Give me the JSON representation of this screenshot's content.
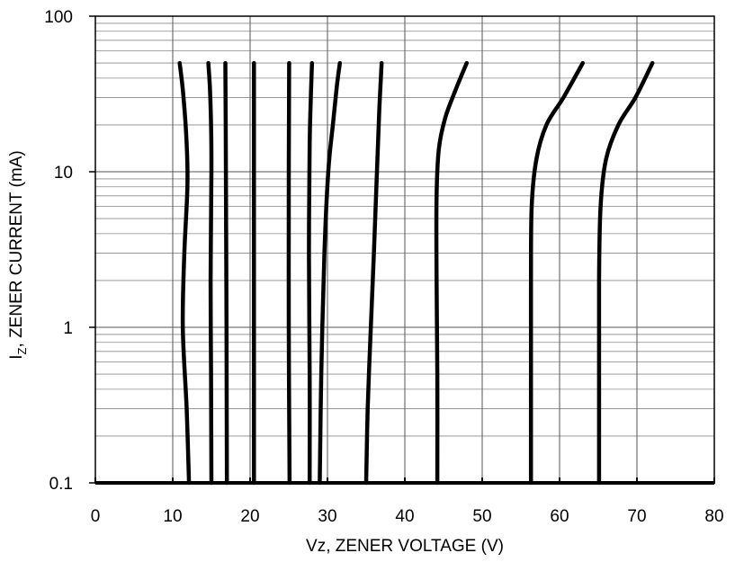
{
  "chart_data": {
    "type": "line",
    "title": "",
    "xlabel": "Vz, ZENER VOLTAGE (V)",
    "ylabel": "IZ, ZENER CURRENT (mA)",
    "ylabel_main": "I",
    "ylabel_sub": "Z",
    "ylabel_rest": ", ZENER CURRENT (mA)",
    "x_scale": "linear",
    "y_scale": "log",
    "xlim": [
      0,
      80
    ],
    "ylim": [
      0.1,
      100
    ],
    "grid": true,
    "legend": "none",
    "x_ticks": [
      {
        "value": 0,
        "label": "0"
      },
      {
        "value": 10,
        "label": "10"
      },
      {
        "value": 20,
        "label": "20"
      },
      {
        "value": 30,
        "label": "30"
      },
      {
        "value": 40,
        "label": "40"
      },
      {
        "value": 50,
        "label": "50"
      },
      {
        "value": 60,
        "label": "60"
      },
      {
        "value": 70,
        "label": "70"
      },
      {
        "value": 80,
        "label": "80"
      }
    ],
    "y_ticks": [
      {
        "value": 0.1,
        "label": "0.1"
      },
      {
        "value": 1,
        "label": "1"
      },
      {
        "value": 10,
        "label": "10"
      },
      {
        "value": 100,
        "label": "100"
      }
    ],
    "series": [
      {
        "points": [
          [
            12.1,
            0.1
          ],
          [
            11.8,
            0.3
          ],
          [
            11.3,
            1
          ],
          [
            11.5,
            3
          ],
          [
            11.9,
            8
          ],
          [
            11.8,
            15
          ],
          [
            11.4,
            30
          ],
          [
            10.9,
            50
          ]
        ]
      },
      {
        "points": [
          [
            15.0,
            0.1
          ],
          [
            14.95,
            0.5
          ],
          [
            14.9,
            2
          ],
          [
            15.0,
            10
          ],
          [
            14.95,
            20
          ],
          [
            14.8,
            35
          ],
          [
            14.6,
            50
          ]
        ]
      },
      {
        "points": [
          [
            17.0,
            0.1
          ],
          [
            16.95,
            1
          ],
          [
            16.9,
            5
          ],
          [
            16.85,
            20
          ],
          [
            16.8,
            50
          ]
        ]
      },
      {
        "points": [
          [
            20.5,
            0.1
          ],
          [
            20.5,
            1
          ],
          [
            20.5,
            10
          ],
          [
            20.5,
            50
          ]
        ]
      },
      {
        "points": [
          [
            25.1,
            0.1
          ],
          [
            25.0,
            1
          ],
          [
            25.0,
            10
          ],
          [
            25.05,
            50
          ]
        ]
      },
      {
        "points": [
          [
            27.7,
            0.1
          ],
          [
            27.7,
            0.5
          ],
          [
            27.6,
            3
          ],
          [
            27.7,
            15
          ],
          [
            27.85,
            30
          ],
          [
            28.0,
            50
          ]
        ]
      },
      {
        "points": [
          [
            29.0,
            0.1
          ],
          [
            29.2,
            0.5
          ],
          [
            29.6,
            3
          ],
          [
            30.1,
            10
          ],
          [
            30.7,
            20
          ],
          [
            31.2,
            35
          ],
          [
            31.6,
            50
          ]
        ]
      },
      {
        "points": [
          [
            35.0,
            0.1
          ],
          [
            35.2,
            0.3
          ],
          [
            35.6,
            1
          ],
          [
            36.0,
            3
          ],
          [
            36.4,
            10
          ],
          [
            36.7,
            25
          ],
          [
            37.0,
            50
          ]
        ]
      },
      {
        "points": [
          [
            44.2,
            0.1
          ],
          [
            44.2,
            0.5
          ],
          [
            44.1,
            2
          ],
          [
            44.1,
            7
          ],
          [
            44.4,
            14
          ],
          [
            45.2,
            22
          ],
          [
            46.5,
            33
          ],
          [
            48.0,
            50
          ]
        ]
      },
      {
        "points": [
          [
            56.3,
            0.1
          ],
          [
            56.3,
            0.5
          ],
          [
            56.3,
            2
          ],
          [
            56.4,
            6
          ],
          [
            57.0,
            12
          ],
          [
            58.3,
            20
          ],
          [
            60.5,
            30
          ],
          [
            63.0,
            50
          ]
        ]
      },
      {
        "points": [
          [
            65.1,
            0.1
          ],
          [
            65.1,
            0.5
          ],
          [
            65.1,
            2
          ],
          [
            65.3,
            6
          ],
          [
            66.0,
            12
          ],
          [
            67.6,
            20
          ],
          [
            69.8,
            30
          ],
          [
            72.0,
            50
          ]
        ]
      }
    ]
  }
}
